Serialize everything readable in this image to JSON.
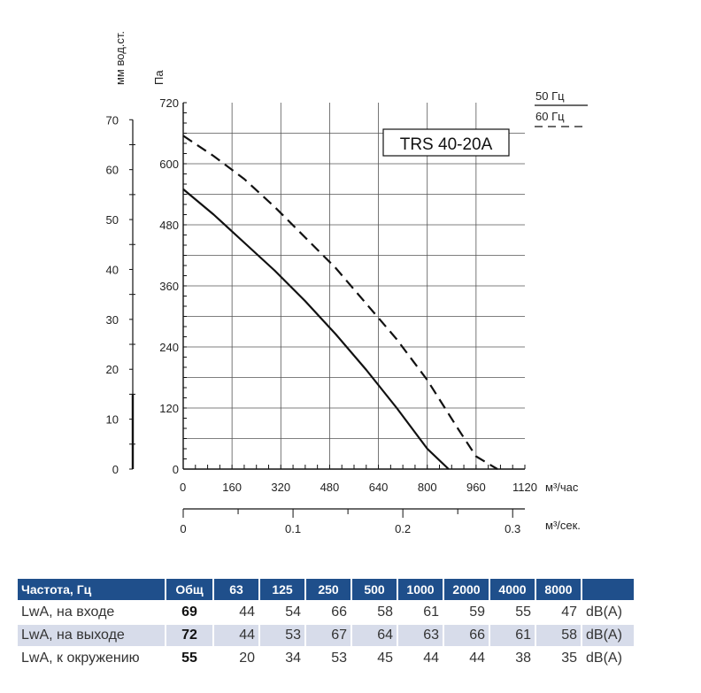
{
  "chart_data": {
    "type": "line",
    "title": "TRS 40-20A",
    "ylabel_left": "мм вод.ст.",
    "ylabel_pa": "Па",
    "xlabel_hour": "м³/час",
    "xlabel_sec": "м³/сек.",
    "x_ticks_hour": [
      "0",
      "160",
      "320",
      "480",
      "640",
      "800",
      "960",
      "1120"
    ],
    "x_ticks_sec": [
      "0",
      "0.1",
      "0.2",
      "0.3"
    ],
    "y_ticks_pa": [
      "0",
      "120",
      "240",
      "360",
      "480",
      "600",
      "720"
    ],
    "y_ticks_mm": [
      "0",
      "10",
      "20",
      "30",
      "40",
      "50",
      "60",
      "70"
    ],
    "xlim": [
      0,
      1120
    ],
    "ylim": [
      0,
      720
    ],
    "grid": true,
    "legend": {
      "solid": "50 Гц",
      "dashed": "60 Гц",
      "placement": "top-right"
    },
    "series": [
      {
        "name": "50 Гц",
        "style": "solid",
        "x": [
          0,
          100,
          200,
          300,
          400,
          500,
          600,
          700,
          800,
          870,
          940
        ],
        "y": [
          550,
          500,
          445,
          390,
          330,
          265,
          195,
          120,
          40,
          0,
          0
        ]
      },
      {
        "name": "60 Гц",
        "style": "dashed",
        "x": [
          0,
          100,
          200,
          300,
          400,
          500,
          600,
          700,
          800,
          900,
          960,
          1030
        ],
        "y": [
          655,
          615,
          570,
          515,
          455,
          395,
          325,
          255,
          175,
          80,
          25,
          0
        ]
      }
    ]
  },
  "table": {
    "headers": [
      "Частота, Гц",
      "Общ",
      "63",
      "125",
      "250",
      "500",
      "1000",
      "2000",
      "4000",
      "8000",
      ""
    ],
    "rows": [
      {
        "label": "LwA, на входе",
        "total": "69",
        "values": [
          "44",
          "54",
          "66",
          "58",
          "61",
          "59",
          "55",
          "47"
        ],
        "unit": "dB(A)"
      },
      {
        "label": "LwA, на выходе",
        "total": "72",
        "values": [
          "44",
          "53",
          "67",
          "64",
          "63",
          "66",
          "61",
          "58"
        ],
        "unit": "dB(A)"
      },
      {
        "label": "LwA, к окружению",
        "total": "55",
        "values": [
          "20",
          "34",
          "53",
          "45",
          "44",
          "44",
          "38",
          "35"
        ],
        "unit": "dB(A)"
      }
    ]
  }
}
